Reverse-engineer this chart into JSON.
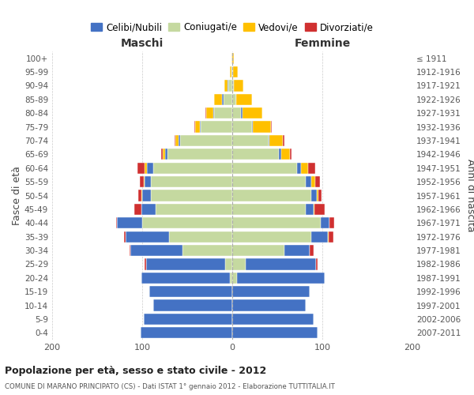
{
  "age_groups": [
    "0-4",
    "5-9",
    "10-14",
    "15-19",
    "20-24",
    "25-29",
    "30-34",
    "35-39",
    "40-44",
    "45-49",
    "50-54",
    "55-59",
    "60-64",
    "65-69",
    "70-74",
    "75-79",
    "80-84",
    "85-89",
    "90-94",
    "95-99",
    "100+"
  ],
  "birth_years": [
    "2007-2011",
    "2002-2006",
    "1997-2001",
    "1992-1996",
    "1987-1991",
    "1982-1986",
    "1977-1981",
    "1972-1976",
    "1967-1971",
    "1962-1966",
    "1957-1961",
    "1952-1956",
    "1947-1951",
    "1942-1946",
    "1937-1941",
    "1932-1936",
    "1927-1931",
    "1922-1926",
    "1917-1921",
    "1912-1916",
    "≤ 1911"
  ],
  "males_coniugati": [
    0,
    0,
    0,
    0,
    3,
    8,
    55,
    70,
    100,
    85,
    90,
    90,
    88,
    72,
    58,
    35,
    20,
    10,
    4,
    1,
    0
  ],
  "males_celibi": [
    102,
    98,
    88,
    92,
    98,
    88,
    58,
    48,
    28,
    16,
    10,
    7,
    7,
    3,
    2,
    1,
    1,
    1,
    1,
    0,
    0
  ],
  "males_vedovi": [
    0,
    0,
    0,
    0,
    0,
    0,
    0,
    0,
    0,
    0,
    1,
    1,
    2,
    2,
    3,
    5,
    8,
    9,
    4,
    2,
    1
  ],
  "males_divorziati": [
    0,
    0,
    0,
    0,
    0,
    1,
    1,
    2,
    1,
    8,
    3,
    5,
    8,
    2,
    1,
    1,
    1,
    0,
    0,
    0,
    0
  ],
  "females_coniugate": [
    0,
    0,
    0,
    0,
    5,
    15,
    58,
    88,
    98,
    82,
    88,
    82,
    72,
    52,
    40,
    22,
    10,
    4,
    2,
    1,
    0
  ],
  "females_nubili": [
    95,
    90,
    82,
    86,
    98,
    78,
    28,
    18,
    10,
    8,
    6,
    6,
    4,
    2,
    1,
    1,
    1,
    0,
    0,
    0,
    0
  ],
  "females_vedove": [
    0,
    0,
    0,
    0,
    0,
    0,
    0,
    1,
    0,
    1,
    2,
    4,
    8,
    10,
    15,
    20,
    22,
    18,
    10,
    5,
    2
  ],
  "females_divorziate": [
    0,
    0,
    0,
    0,
    0,
    2,
    4,
    5,
    5,
    12,
    3,
    5,
    8,
    2,
    2,
    1,
    0,
    0,
    0,
    0,
    0
  ],
  "color_celibi": "#4472c4",
  "color_coniugati": "#c5d9a0",
  "color_vedovi": "#ffc000",
  "color_divorziati": "#d03030",
  "title_main": "Popolazione per età, sesso e stato civile - 2012",
  "title_sub": "COMUNE DI MARANO PRINCIPATO (CS) - Dati ISTAT 1° gennaio 2012 - Elaborazione TUTTITALIA.IT",
  "label_maschi": "Maschi",
  "label_femmine": "Femmine",
  "ylabel_left": "Fasce di età",
  "ylabel_right": "Anni di nascita",
  "xlim": 200,
  "bg_color": "#ffffff",
  "grid_color": "#cccccc"
}
